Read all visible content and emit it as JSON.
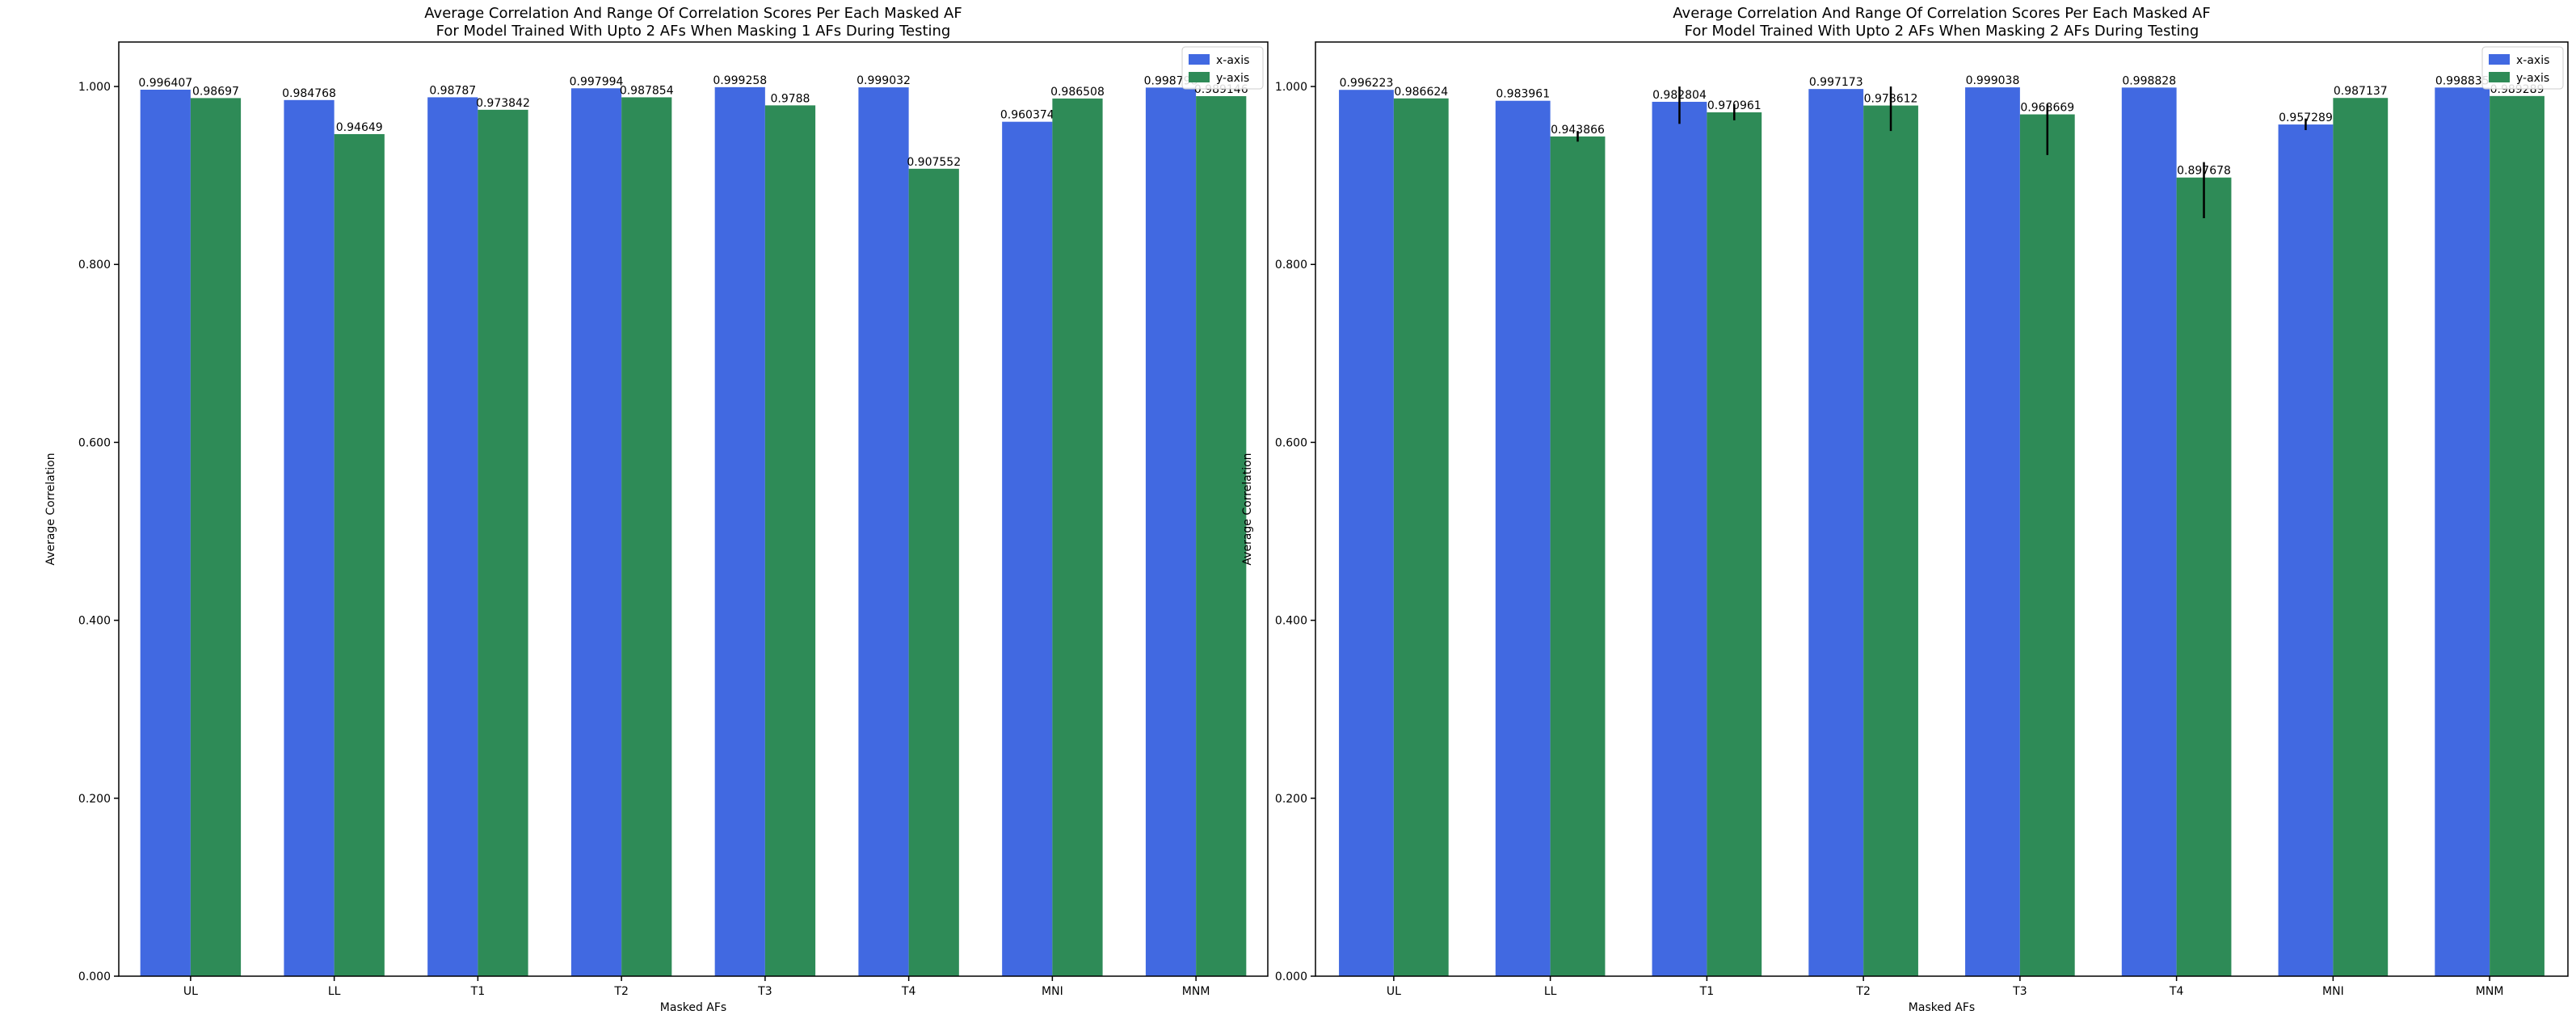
{
  "colors": {
    "x_series": "#4169e1",
    "y_series": "#2e8b57",
    "axis": "#000000",
    "error_bar": "#000000"
  },
  "chart_data": [
    {
      "type": "bar",
      "title_line1": "Average Correlation And Range Of Correlation Scores Per Each Masked AF",
      "title_line2": "For Model Trained With Upto 2 AFs When Masking 1 AFs During Testing",
      "xlabel": "Masked AFs",
      "ylabel": "Average Correlation",
      "ylim": [
        0,
        1.05
      ],
      "yticks": [
        0,
        0.2,
        0.4,
        0.6,
        0.8,
        1.0
      ],
      "ytick_labels": [
        "0.000",
        "0.200",
        "0.400",
        "0.600",
        "0.800",
        "1.000"
      ],
      "categories": [
        "UL",
        "LL",
        "T1",
        "T2",
        "T3",
        "T4",
        "MNI",
        "MNM"
      ],
      "legend_position": "top-right",
      "series": [
        {
          "name": "x-axis",
          "values": [
            0.996407,
            0.984768,
            0.98787,
            0.997994,
            0.999258,
            0.999032,
            0.960374,
            0.998798
          ],
          "labels": [
            "0.996407",
            "0.984768",
            "0.98787",
            "0.997994",
            "0.999258",
            "0.999032",
            "0.960374",
            "0.998798"
          ],
          "error_low": [
            null,
            null,
            null,
            null,
            null,
            null,
            null,
            null
          ],
          "error_high": [
            null,
            null,
            null,
            null,
            null,
            null,
            null,
            null
          ]
        },
        {
          "name": "y-axis",
          "values": [
            0.98697,
            0.94649,
            0.973842,
            0.987854,
            0.9788,
            0.907552,
            0.986508,
            0.989146
          ],
          "labels": [
            "0.98697",
            "0.94649",
            "0.973842",
            "0.987854",
            "0.9788",
            "0.907552",
            "0.986508",
            "0.989146"
          ],
          "error_low": [
            null,
            null,
            null,
            null,
            null,
            null,
            null,
            null
          ],
          "error_high": [
            null,
            null,
            null,
            null,
            null,
            null,
            null,
            null
          ]
        }
      ]
    },
    {
      "type": "bar",
      "title_line1": "Average Correlation And Range Of Correlation Scores Per Each Masked AF",
      "title_line2": "For Model Trained With Upto 2 AFs When Masking 2 AFs During Testing",
      "xlabel": "Masked AFs",
      "ylabel": "Average Correlation",
      "ylim": [
        0,
        1.05
      ],
      "yticks": [
        0,
        0.2,
        0.4,
        0.6,
        0.8,
        1.0
      ],
      "ytick_labels": [
        "0.000",
        "0.200",
        "0.400",
        "0.600",
        "0.800",
        "1.000"
      ],
      "categories": [
        "UL",
        "LL",
        "T1",
        "T2",
        "T3",
        "T4",
        "MNI",
        "MNM"
      ],
      "legend_position": "top-right",
      "series": [
        {
          "name": "x-axis",
          "values": [
            0.996223,
            0.983961,
            0.982804,
            0.997173,
            0.999038,
            0.998828,
            0.957289,
            0.998835
          ],
          "labels": [
            "0.996223",
            "0.983961",
            "0.982804",
            "0.997173",
            "0.999038",
            "0.998828",
            "0.957289",
            "0.998835"
          ],
          "error_low": [
            null,
            null,
            0.958,
            null,
            null,
            null,
            0.951,
            null
          ],
          "error_high": [
            null,
            null,
            1.0,
            null,
            null,
            null,
            0.964,
            null
          ]
        },
        {
          "name": "y-axis",
          "values": [
            0.986624,
            0.943866,
            0.970961,
            0.978612,
            0.968669,
            0.897678,
            0.987137,
            0.989289
          ],
          "labels": [
            "0.986624",
            "0.943866",
            "0.970961",
            "0.978612",
            "0.968669",
            "0.897678",
            "0.987137",
            "0.989289"
          ],
          "error_low": [
            null,
            0.938,
            0.962,
            0.95,
            0.923,
            0.852,
            null,
            null
          ],
          "error_high": [
            null,
            0.95,
            0.98,
            1.0,
            0.98,
            0.915,
            null,
            null
          ]
        }
      ]
    }
  ]
}
